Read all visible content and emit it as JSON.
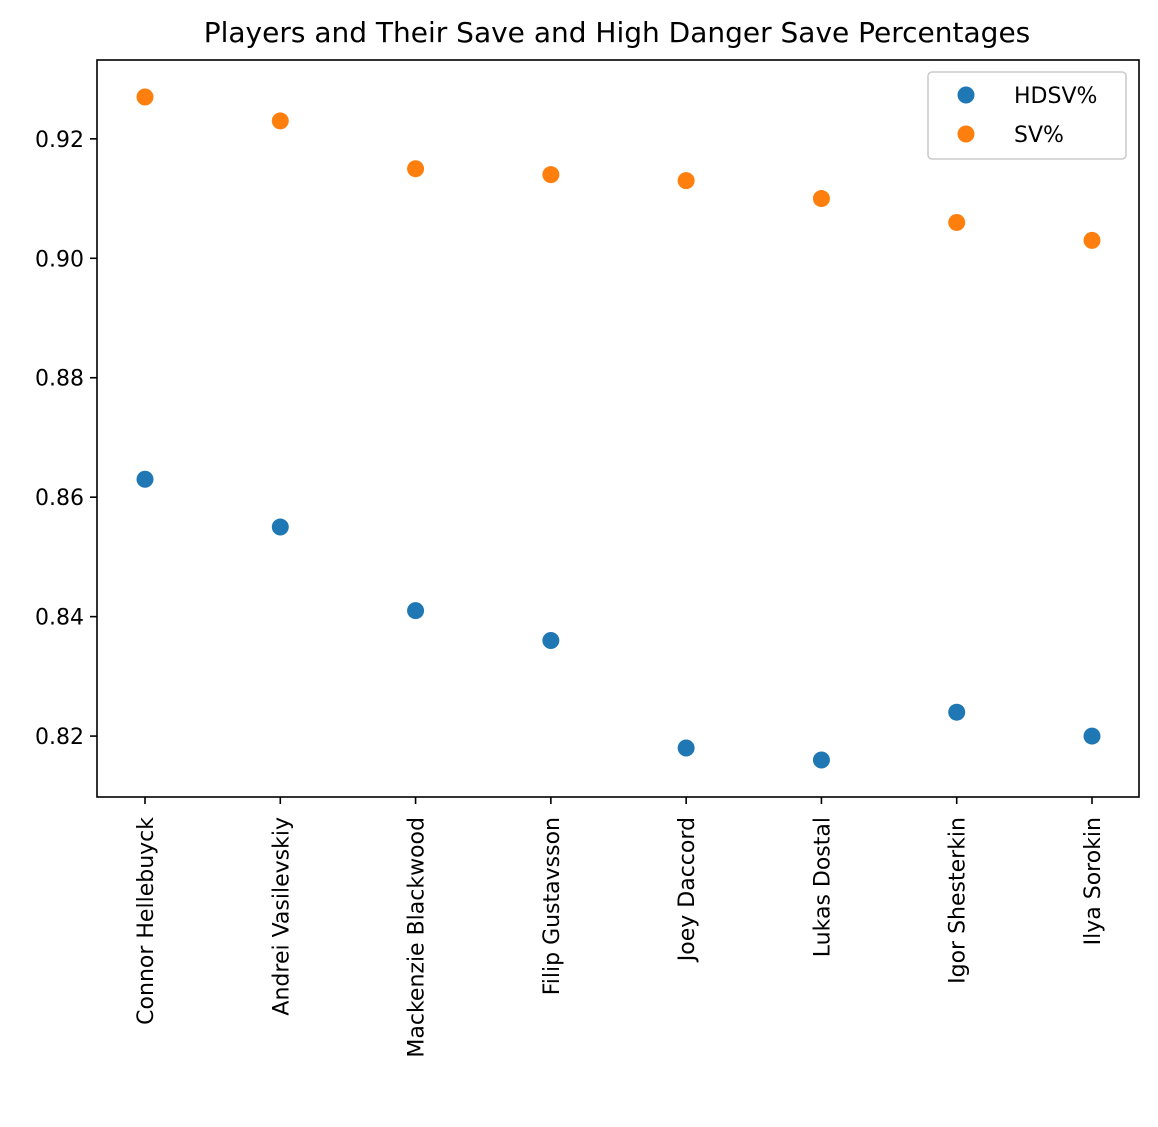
{
  "chart_data": {
    "type": "scatter",
    "title": "Players and Their Save and High Danger Save Percentages",
    "xlabel": "",
    "ylabel": "",
    "categories": [
      "Connor Hellebuyck",
      "Andrei Vasilevskiy",
      "Mackenzie Blackwood",
      "Filip Gustavsson",
      "Joey Daccord",
      "Lukas Dostal",
      "Igor Shesterkin",
      "Ilya Sorokin"
    ],
    "series": [
      {
        "name": "HDSV%",
        "color": "#1f77b4",
        "values": [
          0.863,
          0.855,
          0.841,
          0.836,
          0.818,
          0.816,
          0.824,
          0.82
        ]
      },
      {
        "name": "SV%",
        "color": "#ff7f0e",
        "values": [
          0.927,
          0.923,
          0.915,
          0.914,
          0.913,
          0.91,
          0.906,
          0.903
        ]
      }
    ],
    "ylim": [
      0.8098,
      0.9332
    ],
    "yticks": [
      "0.82",
      "0.84",
      "0.86",
      "0.88",
      "0.90",
      "0.92"
    ],
    "grid": false,
    "legend": "top-right"
  }
}
